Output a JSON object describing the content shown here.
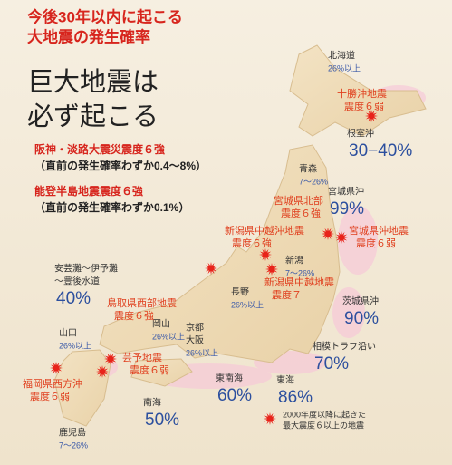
{
  "title": {
    "lines": [
      "今後30年以内に起こる",
      "大地震の発生確率"
    ]
  },
  "headline": {
    "lines": [
      "巨大地震は",
      "必ず起こる"
    ]
  },
  "notes": [
    {
      "event": "阪神・淡路大震災震度６強",
      "note": "（直前の発生確率わずか0.4〜8%）"
    },
    {
      "event": "能登半島地震震度６強",
      "note": "（直前の発生確率わずか0.1%）"
    }
  ],
  "regions": [
    {
      "name": [
        "北海道"
      ],
      "probability": "26%以上"
    },
    {
      "name": [
        "根室沖"
      ],
      "probability": "30−40%"
    },
    {
      "name": [
        "青森"
      ],
      "probability": "7〜26%"
    },
    {
      "name": [
        "宮城県沖"
      ],
      "probability": "99%"
    },
    {
      "name": [
        "新潟"
      ],
      "probability": "7〜26%"
    },
    {
      "name": [
        "安芸灘〜伊予灘",
        "〜豊後水道"
      ],
      "probability": "40%"
    },
    {
      "name": [
        "長野"
      ],
      "probability": "26%以上"
    },
    {
      "name": [
        "茨城県沖"
      ],
      "probability": "90%"
    },
    {
      "name": [
        "岡山"
      ],
      "probability": "26%以上"
    },
    {
      "name": [
        "京都",
        "大阪"
      ],
      "probability": "26%以上"
    },
    {
      "name": [
        "山口"
      ],
      "probability": "26%以上"
    },
    {
      "name": [
        "相模トラフ沿い"
      ],
      "probability": "70%"
    },
    {
      "name": [
        "東南海"
      ],
      "probability": "60%"
    },
    {
      "name": [
        "東海"
      ],
      "probability": "86%"
    },
    {
      "name": [
        "南海"
      ],
      "probability": "50%"
    },
    {
      "name": [
        "鹿児島"
      ],
      "probability": "7〜26%"
    }
  ],
  "earthquakes": [
    {
      "name": "十勝沖地震",
      "intensity": "震度６弱"
    },
    {
      "name": "宮城県北部",
      "intensity": "震度６強"
    },
    {
      "name": "新潟県中越沖地震",
      "intensity": "震度６強"
    },
    {
      "name": "宮城県沖地震",
      "intensity": "震度６弱"
    },
    {
      "name": "新潟県中越地震",
      "intensity": "震度７"
    },
    {
      "name": "鳥取県西部地震",
      "intensity": "震度６強"
    },
    {
      "name": "芸予地震",
      "intensity": "震度６弱"
    },
    {
      "name": "福岡県西方沖",
      "intensity": "震度６弱"
    }
  ],
  "legend": {
    "lines": [
      "2000年度以降に起きた",
      "最大震度６以上の地震"
    ]
  }
}
